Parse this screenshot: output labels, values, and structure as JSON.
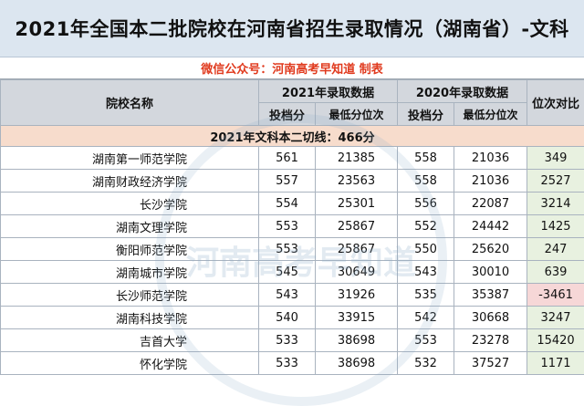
{
  "title": "2021年全国本二批院校在河南省招生录取情况（湖南省）-文科",
  "wechat_note": "微信公众号：河南高考早知道 制表",
  "watermark": "河南高考早知道",
  "headers": {
    "school": "院校名称",
    "y2021": "2021年录取数据",
    "y2020": "2020年录取数据",
    "diff": "位次对比",
    "score": "投档分",
    "rank": "最低分位次"
  },
  "cutoff": "2021年文科本二切线：466分",
  "rows": [
    {
      "school": "湖南第一师范学院",
      "s21": "561",
      "r21": "21385",
      "s20": "558",
      "r20": "21036",
      "diff": "349"
    },
    {
      "school": "湖南财政经济学院",
      "s21": "557",
      "r21": "23563",
      "s20": "558",
      "r20": "21036",
      "diff": "2527"
    },
    {
      "school": "长沙学院",
      "s21": "554",
      "r21": "25301",
      "s20": "556",
      "r20": "22087",
      "diff": "3214"
    },
    {
      "school": "湖南文理学院",
      "s21": "553",
      "r21": "25867",
      "s20": "552",
      "r20": "24442",
      "diff": "1425"
    },
    {
      "school": "衡阳师范学院",
      "s21": "553",
      "r21": "25867",
      "s20": "550",
      "r20": "25620",
      "diff": "247"
    },
    {
      "school": "湖南城市学院",
      "s21": "545",
      "r21": "30649",
      "s20": "543",
      "r20": "30010",
      "diff": "639"
    },
    {
      "school": "长沙师范学院",
      "s21": "543",
      "r21": "31926",
      "s20": "535",
      "r20": "35387",
      "diff": "-3461"
    },
    {
      "school": "湖南科技学院",
      "s21": "540",
      "r21": "33915",
      "s20": "542",
      "r20": "30668",
      "diff": "3247"
    },
    {
      "school": "吉首大学",
      "s21": "533",
      "r21": "38698",
      "s20": "553",
      "r20": "23278",
      "diff": "15420"
    },
    {
      "school": "怀化学院",
      "s21": "533",
      "r21": "38698",
      "s20": "532",
      "r20": "37527",
      "diff": "1171"
    }
  ]
}
